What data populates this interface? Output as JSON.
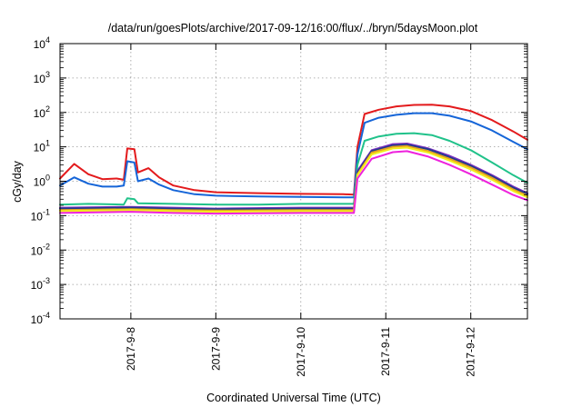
{
  "chart_data": {
    "type": "line",
    "title": "/data/run/goesPlots/archive/2017-09-12/16:00/flux/../bryn/5daysMoon.plot",
    "xlabel": "Coordinated Universal Time (UTC)",
    "ylabel": "cGy/day",
    "yscale": "log",
    "ylim": [
      0.0001,
      10000
    ],
    "xlim": [
      "2017-09-07T04:00",
      "2017-09-12T16:00"
    ],
    "grid": true,
    "legend": "none",
    "x_ticks": [
      "2017-9-8",
      "2017-9-9",
      "2017-9-10",
      "2017-9-11",
      "2017-9-12"
    ],
    "x_tick_dates": [
      "2017-09-08T00:00",
      "2017-09-09T00:00",
      "2017-09-10T00:00",
      "2017-09-11T00:00",
      "2017-09-12T00:00"
    ],
    "y_ticks": [
      {
        "base": "10",
        "exp": "4",
        "value": 10000
      },
      {
        "base": "10",
        "exp": "3",
        "value": 1000
      },
      {
        "base": "10",
        "exp": "2",
        "value": 100
      },
      {
        "base": "10",
        "exp": "1",
        "value": 10
      },
      {
        "base": "10",
        "exp": "0",
        "value": 1
      },
      {
        "base": "10",
        "exp": "-1",
        "value": 0.1
      },
      {
        "base": "10",
        "exp": "-2",
        "value": 0.01
      },
      {
        "base": "10",
        "exp": "-3",
        "value": 0.001
      },
      {
        "base": "10",
        "exp": "-4",
        "value": 0.0001
      }
    ],
    "series": [
      {
        "color": "#e31a1c",
        "points": [
          [
            "2017-09-07T04:00",
            1.2
          ],
          [
            "2017-09-07T08:00",
            3.2
          ],
          [
            "2017-09-07T12:00",
            1.6
          ],
          [
            "2017-09-07T16:00",
            1.15
          ],
          [
            "2017-09-07T20:00",
            1.2
          ],
          [
            "2017-09-07T22:00",
            1.1
          ],
          [
            "2017-09-07T23:00",
            9.0
          ],
          [
            "2017-09-08T01:00",
            8.5
          ],
          [
            "2017-09-08T02:00",
            1.8
          ],
          [
            "2017-09-08T05:00",
            2.4
          ],
          [
            "2017-09-08T08:00",
            1.3
          ],
          [
            "2017-09-08T12:00",
            0.75
          ],
          [
            "2017-09-08T18:00",
            0.55
          ],
          [
            "2017-09-09T00:00",
            0.48
          ],
          [
            "2017-09-09T12:00",
            0.45
          ],
          [
            "2017-09-10T00:00",
            0.43
          ],
          [
            "2017-09-10T12:00",
            0.42
          ],
          [
            "2017-09-10T15:00",
            0.41
          ],
          [
            "2017-09-10T16:00",
            10
          ],
          [
            "2017-09-10T18:00",
            90
          ],
          [
            "2017-09-10T22:00",
            120
          ],
          [
            "2017-09-11T03:00",
            150
          ],
          [
            "2017-09-11T08:00",
            165
          ],
          [
            "2017-09-11T13:00",
            168
          ],
          [
            "2017-09-11T18:00",
            150
          ],
          [
            "2017-09-12T00:00",
            110
          ],
          [
            "2017-09-12T06:00",
            60
          ],
          [
            "2017-09-12T12:00",
            28
          ],
          [
            "2017-09-12T16:00",
            16
          ]
        ]
      },
      {
        "color": "#1565d8",
        "points": [
          [
            "2017-09-07T04:00",
            0.75
          ],
          [
            "2017-09-07T08:00",
            1.3
          ],
          [
            "2017-09-07T12:00",
            0.85
          ],
          [
            "2017-09-07T16:00",
            0.7
          ],
          [
            "2017-09-07T20:00",
            0.7
          ],
          [
            "2017-09-07T22:00",
            0.75
          ],
          [
            "2017-09-07T23:00",
            3.8
          ],
          [
            "2017-09-08T01:00",
            3.5
          ],
          [
            "2017-09-08T02:00",
            1.0
          ],
          [
            "2017-09-08T05:00",
            1.2
          ],
          [
            "2017-09-08T08:00",
            0.8
          ],
          [
            "2017-09-08T12:00",
            0.55
          ],
          [
            "2017-09-08T18:00",
            0.42
          ],
          [
            "2017-09-09T00:00",
            0.38
          ],
          [
            "2017-09-09T12:00",
            0.36
          ],
          [
            "2017-09-10T00:00",
            0.35
          ],
          [
            "2017-09-10T12:00",
            0.34
          ],
          [
            "2017-09-10T15:00",
            0.34
          ],
          [
            "2017-09-10T16:00",
            6
          ],
          [
            "2017-09-10T18:00",
            50
          ],
          [
            "2017-09-10T22:00",
            70
          ],
          [
            "2017-09-11T03:00",
            85
          ],
          [
            "2017-09-11T08:00",
            95
          ],
          [
            "2017-09-11T13:00",
            95
          ],
          [
            "2017-09-11T18:00",
            80
          ],
          [
            "2017-09-12T00:00",
            55
          ],
          [
            "2017-09-12T06:00",
            30
          ],
          [
            "2017-09-12T12:00",
            14
          ],
          [
            "2017-09-12T16:00",
            8.5
          ]
        ]
      },
      {
        "color": "#20c28a",
        "points": [
          [
            "2017-09-07T04:00",
            0.21
          ],
          [
            "2017-09-07T12:00",
            0.22
          ],
          [
            "2017-09-07T22:00",
            0.21
          ],
          [
            "2017-09-07T23:00",
            0.32
          ],
          [
            "2017-09-08T01:00",
            0.3
          ],
          [
            "2017-09-08T02:00",
            0.23
          ],
          [
            "2017-09-08T12:00",
            0.22
          ],
          [
            "2017-09-09T00:00",
            0.21
          ],
          [
            "2017-09-09T12:00",
            0.21
          ],
          [
            "2017-09-10T00:00",
            0.22
          ],
          [
            "2017-09-10T12:00",
            0.22
          ],
          [
            "2017-09-10T15:00",
            0.22
          ],
          [
            "2017-09-10T16:00",
            3
          ],
          [
            "2017-09-10T18:00",
            15
          ],
          [
            "2017-09-10T22:00",
            20
          ],
          [
            "2017-09-11T03:00",
            24
          ],
          [
            "2017-09-11T08:00",
            25
          ],
          [
            "2017-09-11T13:00",
            22
          ],
          [
            "2017-09-11T18:00",
            15
          ],
          [
            "2017-09-12T00:00",
            8
          ],
          [
            "2017-09-12T06:00",
            3.5
          ],
          [
            "2017-09-12T12:00",
            1.5
          ],
          [
            "2017-09-12T16:00",
            0.9
          ]
        ]
      },
      {
        "color": "#7b2cbf",
        "points": [
          [
            "2017-09-07T04:00",
            0.17
          ],
          [
            "2017-09-08T00:00",
            0.18
          ],
          [
            "2017-09-08T12:00",
            0.17
          ],
          [
            "2017-09-09T00:00",
            0.16
          ],
          [
            "2017-09-10T00:00",
            0.17
          ],
          [
            "2017-09-10T15:00",
            0.17
          ],
          [
            "2017-09-10T16:00",
            2
          ],
          [
            "2017-09-10T20:00",
            8
          ],
          [
            "2017-09-11T02:00",
            12
          ],
          [
            "2017-09-11T06:00",
            12.5
          ],
          [
            "2017-09-11T12:00",
            9
          ],
          [
            "2017-09-11T18:00",
            5.5
          ],
          [
            "2017-09-12T00:00",
            3
          ],
          [
            "2017-09-12T06:00",
            1.5
          ],
          [
            "2017-09-12T12:00",
            0.7
          ],
          [
            "2017-09-12T16:00",
            0.45
          ]
        ]
      },
      {
        "color": "#1f3d8c",
        "points": [
          [
            "2017-09-07T04:00",
            0.16
          ],
          [
            "2017-09-08T00:00",
            0.17
          ],
          [
            "2017-09-08T12:00",
            0.16
          ],
          [
            "2017-09-09T00:00",
            0.155
          ],
          [
            "2017-09-10T00:00",
            0.16
          ],
          [
            "2017-09-10T15:00",
            0.16
          ],
          [
            "2017-09-10T16:00",
            1.8
          ],
          [
            "2017-09-10T20:00",
            7.5
          ],
          [
            "2017-09-11T02:00",
            11
          ],
          [
            "2017-09-11T06:00",
            11.5
          ],
          [
            "2017-09-11T12:00",
            8.5
          ],
          [
            "2017-09-11T18:00",
            5
          ],
          [
            "2017-09-12T00:00",
            2.8
          ],
          [
            "2017-09-12T06:00",
            1.4
          ],
          [
            "2017-09-12T12:00",
            0.65
          ],
          [
            "2017-09-12T16:00",
            0.42
          ]
        ]
      },
      {
        "color": "#e8a020",
        "points": [
          [
            "2017-09-07T04:00",
            0.145
          ],
          [
            "2017-09-08T00:00",
            0.155
          ],
          [
            "2017-09-08T12:00",
            0.145
          ],
          [
            "2017-09-09T00:00",
            0.14
          ],
          [
            "2017-09-10T00:00",
            0.145
          ],
          [
            "2017-09-10T15:00",
            0.145
          ],
          [
            "2017-09-10T16:00",
            1.6
          ],
          [
            "2017-09-10T20:00",
            6.8
          ],
          [
            "2017-09-11T02:00",
            10
          ],
          [
            "2017-09-11T06:00",
            10.5
          ],
          [
            "2017-09-11T12:00",
            7.5
          ],
          [
            "2017-09-11T18:00",
            4.5
          ],
          [
            "2017-09-12T00:00",
            2.5
          ],
          [
            "2017-09-12T06:00",
            1.25
          ],
          [
            "2017-09-12T12:00",
            0.58
          ],
          [
            "2017-09-12T16:00",
            0.38
          ]
        ]
      },
      {
        "color": "#f2ee1a",
        "points": [
          [
            "2017-09-07T04:00",
            0.135
          ],
          [
            "2017-09-08T00:00",
            0.145
          ],
          [
            "2017-09-08T12:00",
            0.135
          ],
          [
            "2017-09-09T00:00",
            0.13
          ],
          [
            "2017-09-10T00:00",
            0.135
          ],
          [
            "2017-09-10T15:00",
            0.135
          ],
          [
            "2017-09-10T16:00",
            1.5
          ],
          [
            "2017-09-10T20:00",
            6
          ],
          [
            "2017-09-11T02:00",
            9
          ],
          [
            "2017-09-11T06:00",
            9.5
          ],
          [
            "2017-09-11T12:00",
            6.8
          ],
          [
            "2017-09-11T18:00",
            4
          ],
          [
            "2017-09-12T00:00",
            2.2
          ],
          [
            "2017-09-12T06:00",
            1.1
          ],
          [
            "2017-09-12T12:00",
            0.52
          ],
          [
            "2017-09-12T16:00",
            0.34
          ]
        ]
      },
      {
        "color": "#ee22dd",
        "points": [
          [
            "2017-09-07T04:00",
            0.12
          ],
          [
            "2017-09-08T00:00",
            0.13
          ],
          [
            "2017-09-08T12:00",
            0.12
          ],
          [
            "2017-09-09T00:00",
            0.115
          ],
          [
            "2017-09-10T00:00",
            0.12
          ],
          [
            "2017-09-10T15:00",
            0.12
          ],
          [
            "2017-09-10T16:00",
            1.2
          ],
          [
            "2017-09-10T20:00",
            4.5
          ],
          [
            "2017-09-11T02:00",
            7
          ],
          [
            "2017-09-11T06:00",
            7.5
          ],
          [
            "2017-09-11T12:00",
            5.2
          ],
          [
            "2017-09-11T18:00",
            3
          ],
          [
            "2017-09-12T00:00",
            1.6
          ],
          [
            "2017-09-12T06:00",
            0.8
          ],
          [
            "2017-09-12T12:00",
            0.4
          ],
          [
            "2017-09-12T16:00",
            0.28
          ]
        ]
      }
    ]
  }
}
